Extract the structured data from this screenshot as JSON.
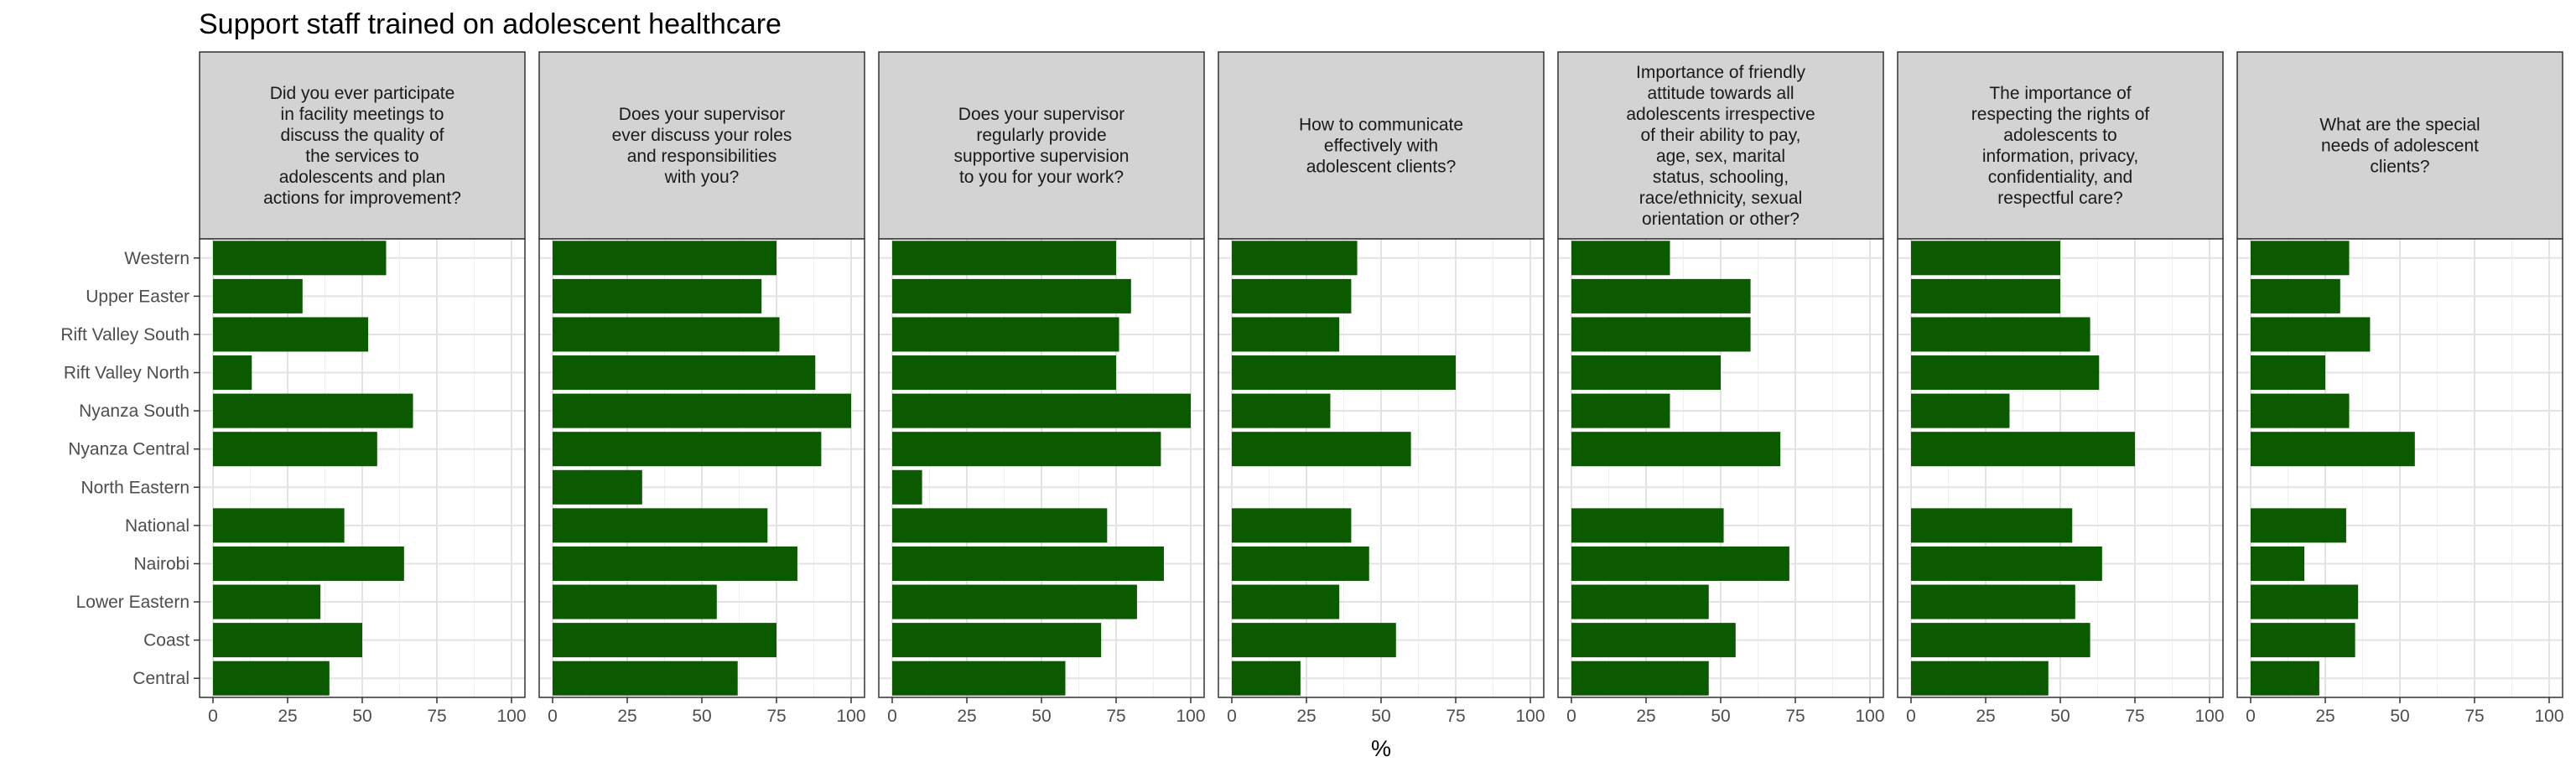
{
  "chart_data": {
    "type": "bar",
    "orientation": "horizontal",
    "title": "Support staff trained on adolescent healthcare",
    "xlabel": "%",
    "ylabel": "",
    "xlim": [
      0,
      100
    ],
    "x_ticks": [
      0,
      25,
      50,
      75,
      100
    ],
    "bar_color": "#0b5a00",
    "strip_color": "#d3d3d3",
    "grid": true,
    "categories": [
      "Western",
      "Upper Easter",
      "Rift Valley South",
      "Rift Valley North",
      "Nyanza South",
      "Nyanza Central",
      "North Eastern",
      "National",
      "Nairobi",
      "Lower Eastern",
      "Coast",
      "Central"
    ],
    "panels": [
      {
        "name": "Did you ever participate in facility meetings to discuss the quality of the services to adolescents and plan actions for improvement?",
        "strip_lines": [
          "Did you ever participate",
          "in facility meetings to",
          "discuss the quality of",
          "the services to",
          "adolescents and plan",
          "actions for improvement?"
        ],
        "values": [
          58,
          30,
          52,
          13,
          67,
          55,
          null,
          44,
          64,
          36,
          50,
          39
        ]
      },
      {
        "name": "Does your supervisor ever discuss your roles and responsibilities with you?",
        "strip_lines": [
          "Does your supervisor",
          "ever discuss your roles",
          "and responsibilities",
          "with you?"
        ],
        "values": [
          75,
          70,
          76,
          88,
          100,
          90,
          30,
          72,
          82,
          55,
          75,
          62
        ]
      },
      {
        "name": "Does your supervisor regularly provide supportive supervision to you for your work?",
        "strip_lines": [
          "Does your supervisor",
          "regularly provide",
          "supportive supervision",
          "to you for your work?"
        ],
        "values": [
          75,
          80,
          76,
          75,
          100,
          90,
          10,
          72,
          91,
          82,
          70,
          58
        ]
      },
      {
        "name": "How to communicate effectively with adolescent clients?",
        "strip_lines": [
          "How to communicate",
          "effectively with",
          "adolescent clients?"
        ],
        "values": [
          42,
          40,
          36,
          75,
          33,
          60,
          null,
          40,
          46,
          36,
          55,
          23
        ]
      },
      {
        "name": "Importance of friendly attitude towards all adolescents irrespective of their ability to pay, age, sex, marital status, schooling, race/ethnicity, sexual orientation or other?",
        "strip_lines": [
          "Importance of friendly",
          "attitude towards all",
          "adolescents irrespective",
          "of their ability to pay,",
          "age, sex, marital",
          "status, schooling,",
          "race/ethnicity, sexual",
          "orientation or other?"
        ],
        "values": [
          33,
          60,
          60,
          50,
          33,
          70,
          null,
          51,
          73,
          46,
          55,
          46
        ]
      },
      {
        "name": "The importance of respecting the rights of adolescents to information, privacy, confidentiality, and respectful care?",
        "strip_lines": [
          "The importance of",
          "respecting the rights of",
          "adolescents to",
          "information, privacy,",
          "confidentiality, and",
          "respectful care?"
        ],
        "values": [
          50,
          50,
          60,
          63,
          33,
          75,
          null,
          54,
          64,
          55,
          60,
          46
        ]
      },
      {
        "name": "What are the special needs of adolescent clients?",
        "strip_lines": [
          "What are the special",
          "needs of adolescent",
          "clients?"
        ],
        "values": [
          33,
          30,
          40,
          25,
          33,
          55,
          null,
          32,
          18,
          36,
          35,
          23
        ]
      }
    ]
  }
}
